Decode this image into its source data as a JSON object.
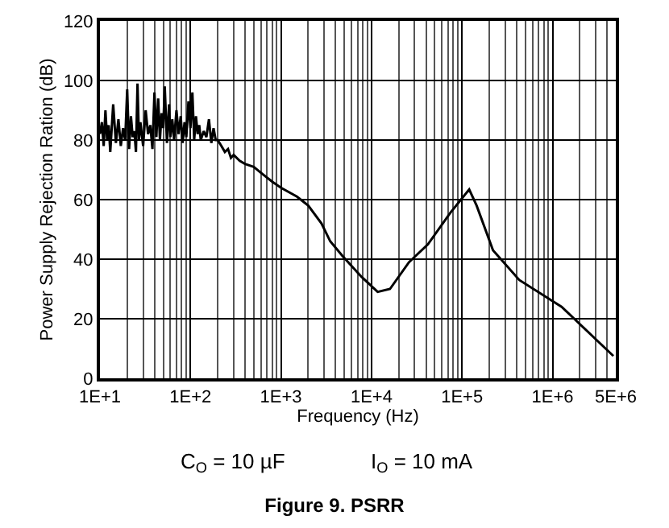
{
  "chart_data": {
    "type": "line",
    "title": "Figure 9. PSRR",
    "xlabel": "Frequency (Hz)",
    "ylabel": "Power Supply Rejection Ration (dB)",
    "annotations": [
      "C$_{O}$ = 10 µF",
      "I$_{O}$ = 10 mA"
    ],
    "log": "x",
    "grid": true,
    "legend": false,
    "marker": "none",
    "line_style": "solid",
    "xlim": [
      10,
      5000000
    ],
    "xticks": [
      {
        "value": 10,
        "label": "1E+1"
      },
      {
        "value": 100,
        "label": "1E+2"
      },
      {
        "value": 1000,
        "label": "1E+3"
      },
      {
        "value": 10000,
        "label": "1E+4"
      },
      {
        "value": 100000,
        "label": "1E+5"
      },
      {
        "value": 1000000,
        "label": "1E+6"
      },
      {
        "value": 5000000,
        "label": "5E+6"
      }
    ],
    "ylim": [
      0,
      120
    ],
    "yticks": [
      0,
      20,
      40,
      60,
      80,
      100,
      120
    ],
    "series": [
      {
        "color": "#000000",
        "x": [
          10,
          10.5,
          11,
          11.5,
          12,
          12.5,
          13,
          14,
          15,
          16,
          17,
          18,
          19,
          20,
          21,
          22,
          23,
          24,
          25,
          26,
          27,
          28,
          30,
          32,
          34,
          36,
          38,
          40,
          42,
          44,
          46,
          48,
          50,
          52,
          55,
          58,
          60,
          63,
          66,
          70,
          74,
          78,
          82,
          86,
          90,
          95,
          100,
          105,
          110,
          115,
          120,
          125,
          130,
          140,
          150,
          160,
          170,
          180,
          190,
          200,
          220,
          240,
          260,
          280,
          300,
          350,
          400,
          500,
          600,
          800,
          1000,
          1500,
          2000,
          2800,
          3500,
          4800,
          7800,
          11700,
          16000,
          26000,
          42000,
          74000,
          120000,
          145000,
          220000,
          430000,
          1260000,
          4700000
        ],
        "values": [
          82,
          86,
          78,
          90,
          80,
          85,
          76,
          92,
          79,
          87,
          78,
          84,
          80,
          97,
          77,
          88,
          81,
          83,
          76,
          99,
          80,
          86,
          78,
          90,
          82,
          85,
          77,
          96,
          81,
          94,
          80,
          89,
          84,
          98,
          79,
          92,
          81,
          87,
          80,
          90,
          82,
          88,
          79,
          86,
          81,
          93,
          84,
          96,
          80,
          88,
          82,
          85,
          80,
          83,
          81,
          87,
          79,
          84,
          80,
          80,
          78,
          76,
          77,
          74,
          75,
          73,
          72,
          71,
          69,
          66,
          64,
          61,
          58,
          52,
          46,
          41,
          34,
          29,
          30,
          39,
          45,
          55.5,
          63.4,
          58,
          43,
          33,
          24,
          7.5
        ]
      }
    ]
  }
}
